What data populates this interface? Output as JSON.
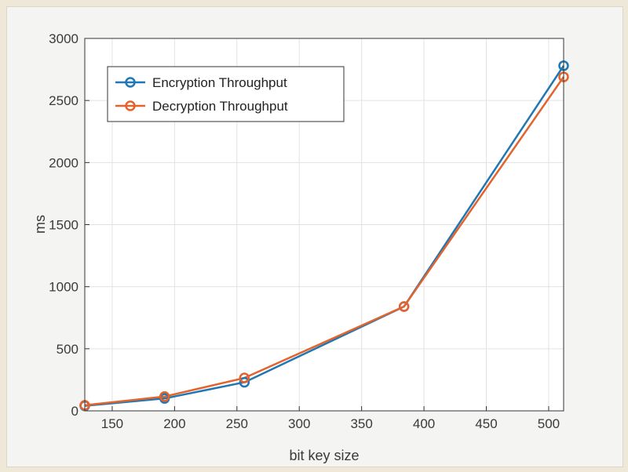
{
  "chart_data": {
    "type": "line",
    "title": "",
    "xlabel": "bit key size",
    "ylabel": "ms",
    "xlim": [
      128,
      512
    ],
    "ylim": [
      0,
      3000
    ],
    "xticks": [
      150,
      200,
      250,
      300,
      350,
      400,
      450,
      500
    ],
    "yticks": [
      0,
      500,
      1000,
      1500,
      2000,
      2500,
      3000
    ],
    "grid": true,
    "legend_position": "top-left",
    "x": [
      128,
      192,
      256,
      384,
      512
    ],
    "series": [
      {
        "name": "Encryption Throughput",
        "color": "#1f77b4",
        "values": [
          40,
          100,
          230,
          840,
          2780
        ]
      },
      {
        "name": "Decryption Throughput",
        "color": "#e3632d",
        "values": [
          45,
          115,
          265,
          840,
          2690
        ]
      }
    ]
  }
}
